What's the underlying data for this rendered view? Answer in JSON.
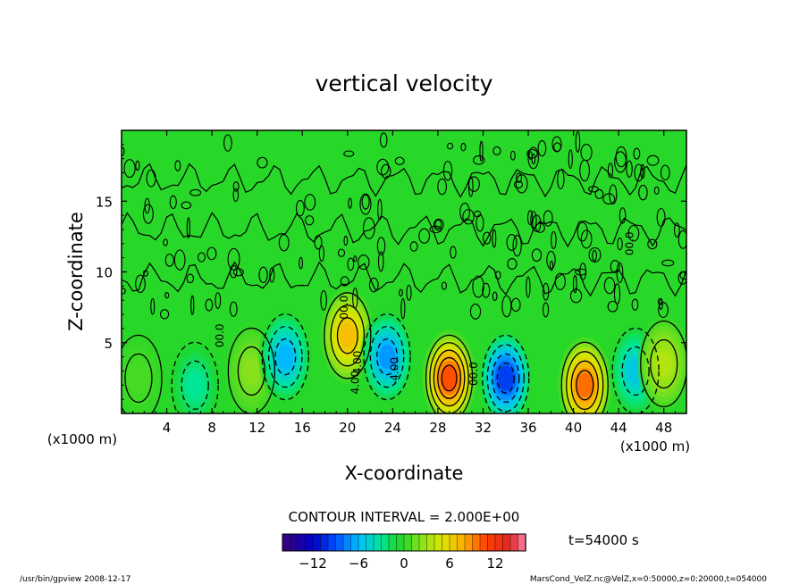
{
  "chart_data": {
    "type": "heatmap",
    "title": "vertical velocity",
    "xlabel": "X-coordinate",
    "ylabel": "Z-coordinate",
    "x_unit": "(x1000 m)",
    "x_unit_left": "(x1000 m)",
    "xlim": [
      0,
      50
    ],
    "ylim": [
      0,
      20
    ],
    "x_ticks": [
      4,
      8,
      12,
      16,
      20,
      24,
      28,
      32,
      36,
      40,
      44,
      48
    ],
    "y_ticks": [
      5,
      10,
      15
    ],
    "contour_interval_text": "CONTOUR INTERVAL = 2.000E+00",
    "contour_labels": [
      "4.00",
      "4.00",
      "-4.00",
      "00.0",
      "00.0",
      "00.0",
      "00.0"
    ],
    "colorbar": {
      "range": [
        -16,
        16
      ],
      "ticks": [
        -12,
        -6,
        0,
        6,
        12
      ],
      "tick_labels": [
        "−12",
        "−6",
        "0",
        "6",
        "12"
      ]
    },
    "cells": [
      {
        "x": 1.5,
        "z": 2.5,
        "w": 0.8
      },
      {
        "x": 6.5,
        "z": 2.0,
        "w": -3.5
      },
      {
        "x": 11.5,
        "z": 3.0,
        "w": 2.5
      },
      {
        "x": 14.5,
        "z": 4.0,
        "w": -7.0
      },
      {
        "x": 20.0,
        "z": 5.5,
        "w": 8.0
      },
      {
        "x": 23.5,
        "z": 4.0,
        "w": -8.0
      },
      {
        "x": 29.0,
        "z": 2.5,
        "w": 12.0
      },
      {
        "x": 34.0,
        "z": 2.5,
        "w": -11.0
      },
      {
        "x": 41.0,
        "z": 2.0,
        "w": 11.0
      },
      {
        "x": 45.5,
        "z": 3.0,
        "w": -6.0
      },
      {
        "x": 48.0,
        "z": 3.5,
        "w": 4.0
      }
    ],
    "grid": true
  },
  "time_label": "t=54000 s",
  "footer": {
    "left": "/usr/bin/gpview   2008-12-17",
    "right": "MarsCond_VelZ.nc@VelZ,x=0:50000,z=0:20000,t=054000"
  },
  "colors": {
    "background": "#00d400",
    "contour": "#000000"
  }
}
